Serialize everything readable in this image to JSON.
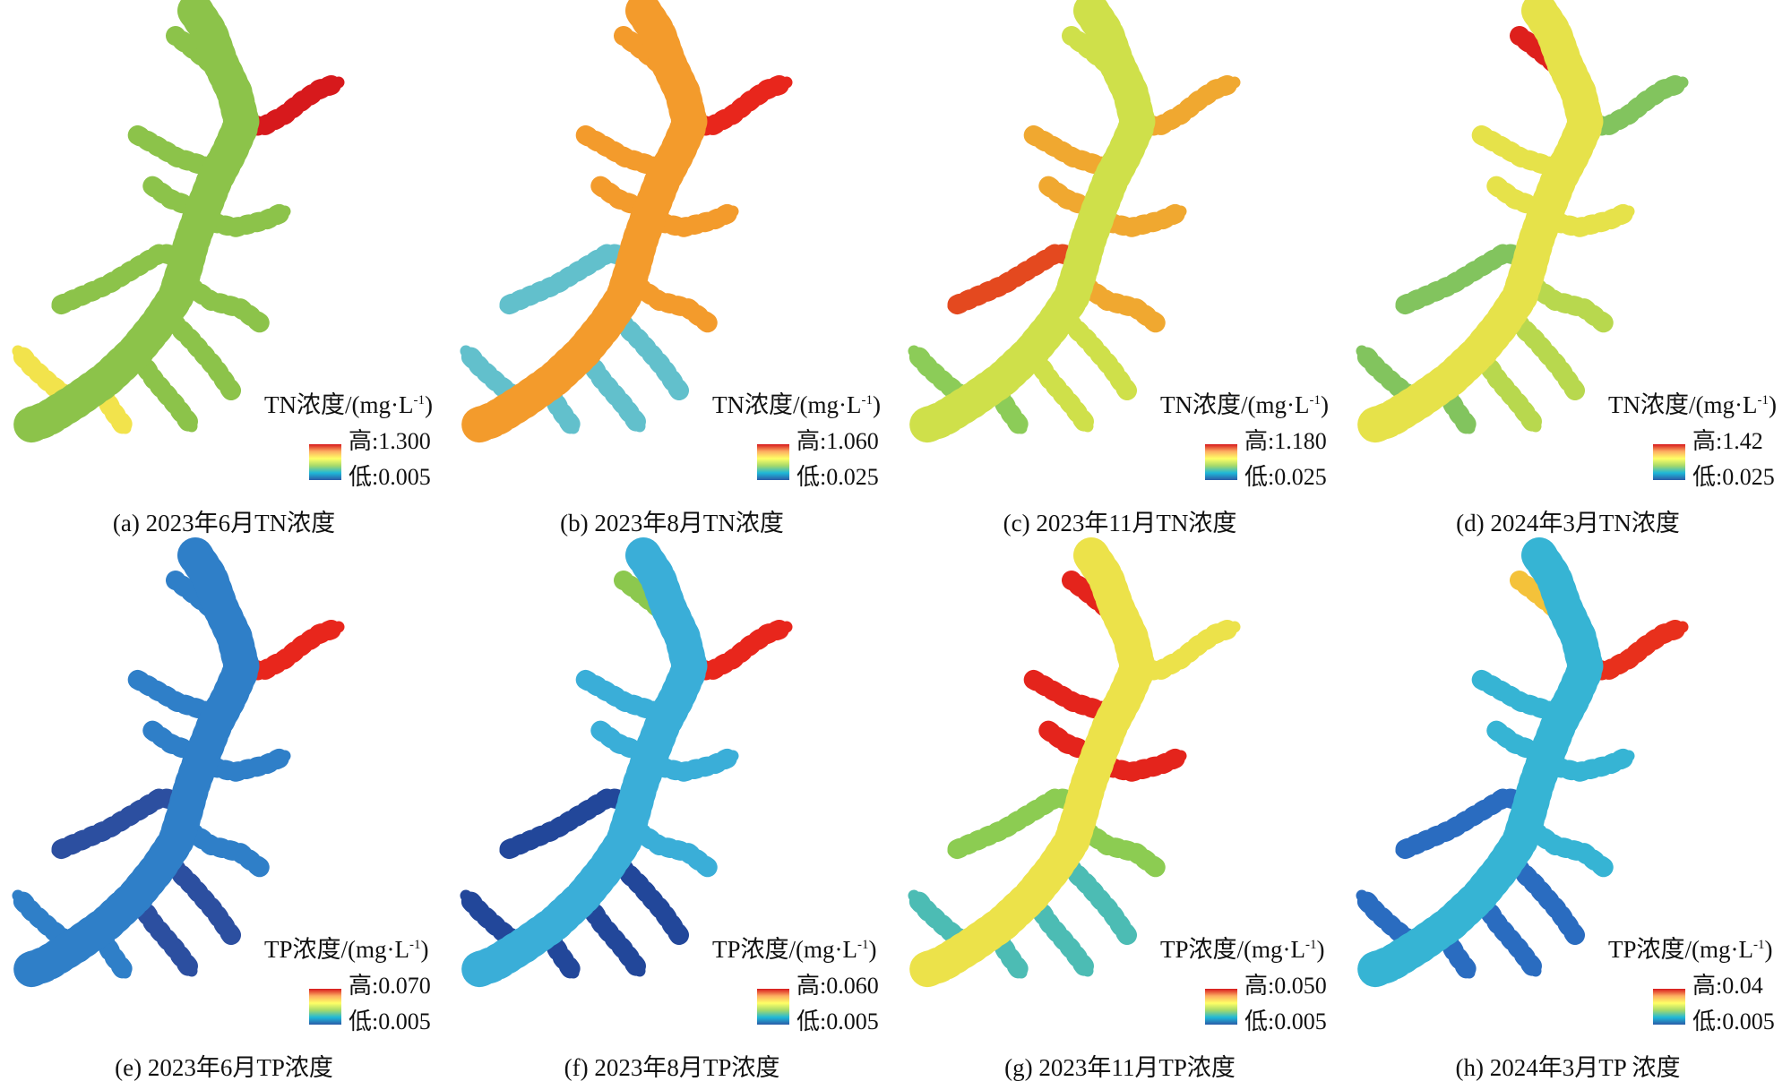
{
  "legend_common": {
    "unit": "浓度/(mg·L",
    "sup": "-1",
    "close": ")"
  },
  "ramp_colors": [
    "#d7191c",
    "#fdae61",
    "#ffff66",
    "#a6d96a",
    "#1fb8d8",
    "#2b5ba8"
  ],
  "panels": [
    {
      "caption": "(a) 2023年6月TN浓度",
      "param": "TN",
      "high": "高:1.300",
      "low": "低:0.005",
      "fill": {
        "base": "#8cc34a",
        "hot": "#d7191c",
        "warm": "#f2e34c",
        "cool": "#6cc2a0"
      }
    },
    {
      "caption": "(b) 2023年8月TN浓度",
      "param": "TN",
      "high": "高:1.060",
      "low": "低:0.025",
      "fill": {
        "base": "#e9d63a",
        "hot": "#e8261c",
        "warm": "#f39b2c",
        "cool": "#62c0cc"
      }
    },
    {
      "caption": "(c) 2023年11月TN浓度",
      "param": "TN",
      "high": "高:1.180",
      "low": "低:0.025",
      "fill": {
        "base": "#cfe04a",
        "hot": "#e4491f",
        "warm": "#f0a830",
        "cool": "#8ccc58"
      }
    },
    {
      "caption": "(d) 2024年3月TN浓度",
      "param": "TN",
      "high": "高:1.42",
      "low": "低:0.025",
      "fill": {
        "base": "#b8d84e",
        "hot": "#de201c",
        "warm": "#e6e24a",
        "cool": "#82c45e"
      }
    },
    {
      "caption": "(e) 2023年6月TP浓度",
      "param": "TP",
      "high": "高:0.070",
      "low": "低:0.005",
      "fill": {
        "base": "#2f7fc8",
        "hot": "#e8261c",
        "warm": "#a8d86a",
        "cool": "#2c4fa0"
      }
    },
    {
      "caption": "(f) 2023年8月TP浓度",
      "param": "TP",
      "high": "高:0.060",
      "low": "低:0.005",
      "fill": {
        "base": "#3aaed8",
        "hot": "#e8261c",
        "warm": "#8cc84e",
        "cool": "#22479a"
      }
    },
    {
      "caption": "(g) 2023年11月TP浓度",
      "param": "TP",
      "high": "高:0.050",
      "low": "低:0.005",
      "fill": {
        "base": "#8ccc52",
        "hot": "#e4241c",
        "warm": "#ece24a",
        "cool": "#4cbcb4"
      }
    },
    {
      "caption": "(h) 2024年3月TP 浓度",
      "param": "TP",
      "high": "高:0.04",
      "low": "低:0.005",
      "fill": {
        "base": "#36b4d4",
        "hot": "#e8301c",
        "warm": "#f4c23a",
        "cool": "#2a6cc0"
      }
    }
  ]
}
